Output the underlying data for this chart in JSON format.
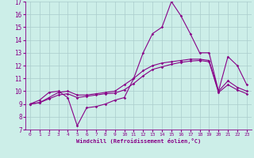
{
  "xlabel": "Windchill (Refroidissement éolien,°C)",
  "bg_color": "#cceee8",
  "line_color": "#880088",
  "grid_color": "#aacccc",
  "xlim": [
    -0.5,
    23.5
  ],
  "ylim": [
    7,
    17
  ],
  "yticks": [
    7,
    8,
    9,
    10,
    11,
    12,
    13,
    14,
    15,
    16,
    17
  ],
  "xticks": [
    0,
    1,
    2,
    3,
    4,
    5,
    6,
    7,
    8,
    9,
    10,
    11,
    12,
    13,
    14,
    15,
    16,
    17,
    18,
    19,
    20,
    21,
    22,
    23
  ],
  "line1_x": [
    0,
    1,
    2,
    3,
    4,
    5,
    6,
    7,
    8,
    9,
    10,
    11,
    12,
    13,
    14,
    15,
    16,
    17,
    18,
    19,
    20,
    21,
    22,
    23
  ],
  "line1_y": [
    9.0,
    9.3,
    9.9,
    10.0,
    9.5,
    7.3,
    8.7,
    8.8,
    9.0,
    9.3,
    9.5,
    11.0,
    13.0,
    14.5,
    15.0,
    17.0,
    15.9,
    14.5,
    13.0,
    13.0,
    10.0,
    12.7,
    12.0,
    10.5
  ],
  "line2_x": [
    0,
    1,
    2,
    3,
    4,
    5,
    6,
    7,
    8,
    9,
    10,
    11,
    12,
    13,
    14,
    15,
    16,
    17,
    18,
    19,
    20,
    21,
    22,
    23
  ],
  "line2_y": [
    9.0,
    9.1,
    9.5,
    9.9,
    10.0,
    9.7,
    9.7,
    9.8,
    9.9,
    10.0,
    10.5,
    11.0,
    11.6,
    12.0,
    12.2,
    12.3,
    12.4,
    12.5,
    12.5,
    12.4,
    10.0,
    10.8,
    10.3,
    10.0
  ],
  "line3_x": [
    0,
    1,
    2,
    3,
    4,
    5,
    6,
    7,
    8,
    9,
    10,
    11,
    12,
    13,
    14,
    15,
    16,
    17,
    18,
    19,
    20,
    21,
    22,
    23
  ],
  "line3_y": [
    9.0,
    9.1,
    9.4,
    9.7,
    9.8,
    9.5,
    9.6,
    9.7,
    9.8,
    9.85,
    10.1,
    10.6,
    11.2,
    11.7,
    11.9,
    12.1,
    12.25,
    12.35,
    12.4,
    12.3,
    9.9,
    10.5,
    10.1,
    9.8
  ]
}
